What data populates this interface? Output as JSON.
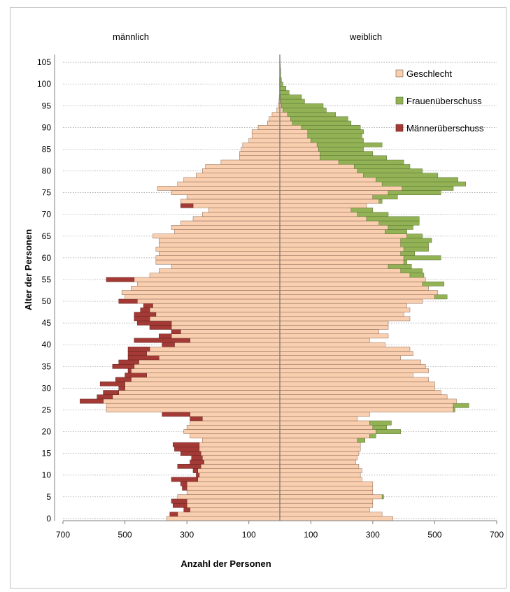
{
  "chart_data": {
    "type": "bar",
    "orientation": "horizontal-population-pyramid",
    "left_label": "männlich",
    "right_label": "weiblich",
    "xlabel": "Anzahl der Personen",
    "ylabel": "Alter der Personen",
    "x_ticks": [
      "700",
      "500",
      "300",
      "100",
      "100",
      "300",
      "500",
      "700"
    ],
    "x_range": [
      0,
      700
    ],
    "y_ticks": [
      "0",
      "5",
      "10",
      "15",
      "20",
      "25",
      "30",
      "35",
      "40",
      "45",
      "50",
      "55",
      "60",
      "65",
      "70",
      "75",
      "80",
      "85",
      "90",
      "95",
      "100",
      "105"
    ],
    "y_range": [
      0,
      105
    ],
    "grid": "horizontal dotted every 5 years",
    "legend_position": "top-right",
    "legend": [
      {
        "name": "Geschlecht",
        "color": "#f9cfb0"
      },
      {
        "name": "Frauenüberschuss",
        "color": "#92b255"
      },
      {
        "name": "Männerüberschuss",
        "color": "#a33a36"
      }
    ],
    "ages": [
      0,
      1,
      2,
      3,
      4,
      5,
      6,
      7,
      8,
      9,
      10,
      11,
      12,
      13,
      14,
      15,
      16,
      17,
      18,
      19,
      20,
      21,
      22,
      23,
      24,
      25,
      26,
      27,
      28,
      29,
      30,
      31,
      32,
      33,
      34,
      35,
      36,
      37,
      38,
      39,
      40,
      41,
      42,
      43,
      44,
      45,
      46,
      47,
      48,
      49,
      50,
      51,
      52,
      53,
      54,
      55,
      56,
      57,
      58,
      59,
      60,
      61,
      62,
      63,
      64,
      65,
      66,
      67,
      68,
      69,
      70,
      71,
      72,
      73,
      74,
      75,
      76,
      77,
      78,
      79,
      80,
      81,
      82,
      83,
      84,
      85,
      86,
      87,
      88,
      89,
      90,
      91,
      92,
      93,
      94,
      95,
      96,
      97,
      98,
      99,
      100,
      101,
      102,
      103,
      104,
      105
    ],
    "male": [
      365,
      355,
      310,
      345,
      350,
      330,
      300,
      315,
      320,
      350,
      270,
      280,
      330,
      290,
      285,
      320,
      340,
      345,
      250,
      290,
      310,
      300,
      290,
      290,
      380,
      560,
      560,
      645,
      590,
      570,
      520,
      580,
      530,
      500,
      490,
      540,
      520,
      490,
      490,
      490,
      380,
      470,
      390,
      350,
      420,
      460,
      470,
      470,
      450,
      440,
      520,
      500,
      510,
      480,
      460,
      560,
      420,
      390,
      350,
      400,
      400,
      390,
      400,
      390,
      390,
      410,
      340,
      350,
      320,
      280,
      250,
      230,
      320,
      320,
      300,
      350,
      395,
      330,
      310,
      270,
      250,
      240,
      190,
      130,
      130,
      125,
      120,
      100,
      90,
      90,
      70,
      40,
      35,
      25,
      10,
      5,
      3,
      2,
      1,
      1,
      1,
      1,
      0,
      0,
      0,
      0
    ],
    "female": [
      365,
      330,
      290,
      300,
      300,
      335,
      300,
      300,
      300,
      265,
      260,
      265,
      255,
      245,
      250,
      255,
      260,
      260,
      275,
      310,
      390,
      345,
      360,
      250,
      290,
      565,
      610,
      570,
      540,
      520,
      500,
      500,
      480,
      430,
      480,
      470,
      455,
      390,
      430,
      420,
      340,
      290,
      350,
      320,
      350,
      350,
      420,
      400,
      420,
      410,
      460,
      540,
      510,
      480,
      530,
      470,
      465,
      460,
      425,
      410,
      520,
      435,
      480,
      480,
      490,
      460,
      410,
      430,
      450,
      450,
      350,
      300,
      280,
      330,
      380,
      520,
      560,
      600,
      575,
      510,
      460,
      420,
      400,
      345,
      300,
      270,
      330,
      270,
      265,
      270,
      260,
      230,
      220,
      180,
      150,
      140,
      80,
      70,
      30,
      20,
      10,
      5,
      3,
      3,
      2,
      1
    ],
    "surplus_note": "Per age: overlap (min of male, female) is drawn in Geschlecht color; the excess on the larger side is drawn as Frauenüberschuss (women) or Männerüberschuss (men)."
  }
}
